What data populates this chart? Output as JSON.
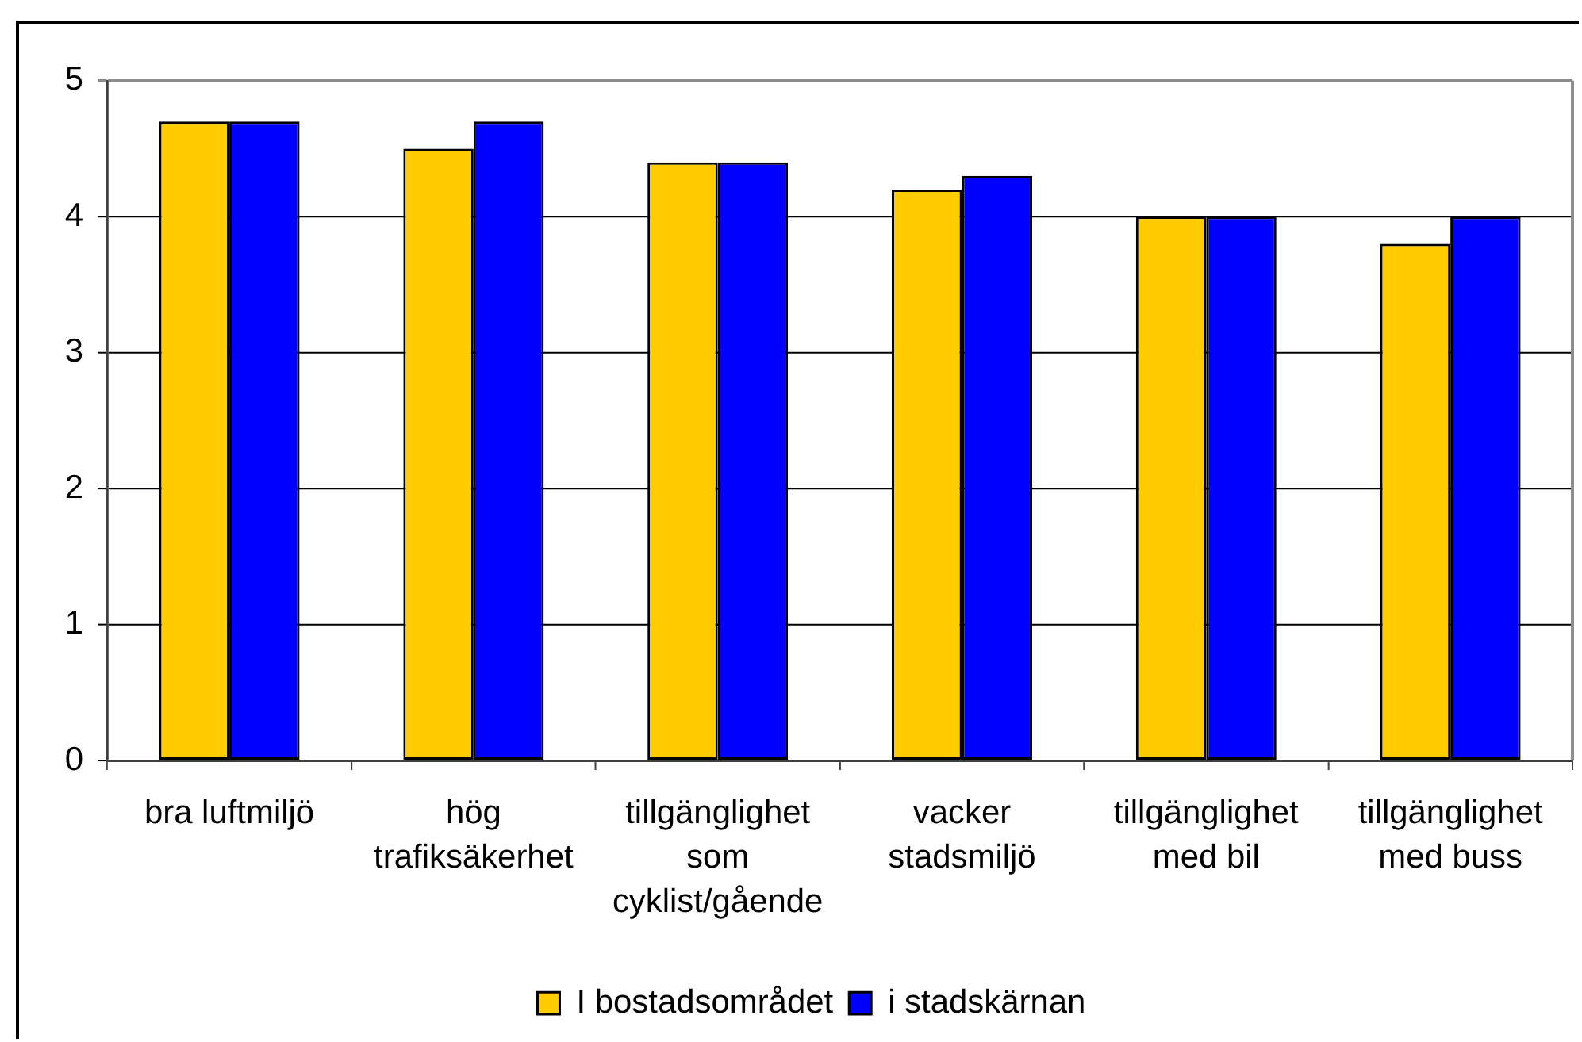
{
  "chart_data": {
    "type": "bar",
    "categories": [
      "bra luftmiljö",
      "hög trafiksäkerhet",
      "tillgänglighet som cyklist/gående",
      "vacker stadsmiljö",
      "tillgänglighet med bil",
      "tillgänglighet med buss"
    ],
    "series": [
      {
        "name": "I bostadsområdet",
        "color": "#ffcc00",
        "values": [
          4.7,
          4.5,
          4.4,
          4.2,
          4.0,
          3.8
        ]
      },
      {
        "name": "i stadskärnan",
        "color": "#0000ff",
        "values": [
          4.7,
          4.7,
          4.4,
          4.3,
          4.0,
          4.0
        ]
      }
    ],
    "ylim": [
      0,
      5
    ],
    "yticks": [
      0,
      1,
      2,
      3,
      4,
      5
    ],
    "grid": "y",
    "legend": "bottom"
  }
}
